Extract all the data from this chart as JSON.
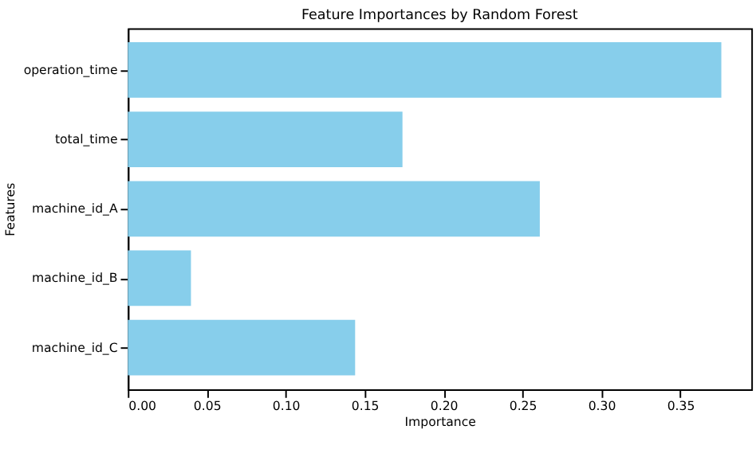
{
  "chart_data": {
    "type": "bar",
    "orientation": "horizontal",
    "title": "Feature Importances by Random Forest",
    "xlabel": "Importance",
    "ylabel": "Features",
    "categories": [
      "operation_time",
      "total_time",
      "machine_id_A",
      "machine_id_B",
      "machine_id_C"
    ],
    "values": [
      0.376,
      0.174,
      0.261,
      0.04,
      0.144
    ],
    "color": "#87ceeb",
    "xlim": [
      0,
      0.395
    ],
    "xticks": [
      {
        "value": 0,
        "label": "0.00"
      },
      {
        "value": 0.05,
        "label": "0.05"
      },
      {
        "value": 0.1,
        "label": "0.10"
      },
      {
        "value": 0.15,
        "label": "0.15"
      },
      {
        "value": 0.2,
        "label": "0.20"
      },
      {
        "value": 0.25,
        "label": "0.25"
      },
      {
        "value": 0.3,
        "label": "0.30"
      },
      {
        "value": 0.35,
        "label": "0.35"
      }
    ],
    "grid": false
  }
}
